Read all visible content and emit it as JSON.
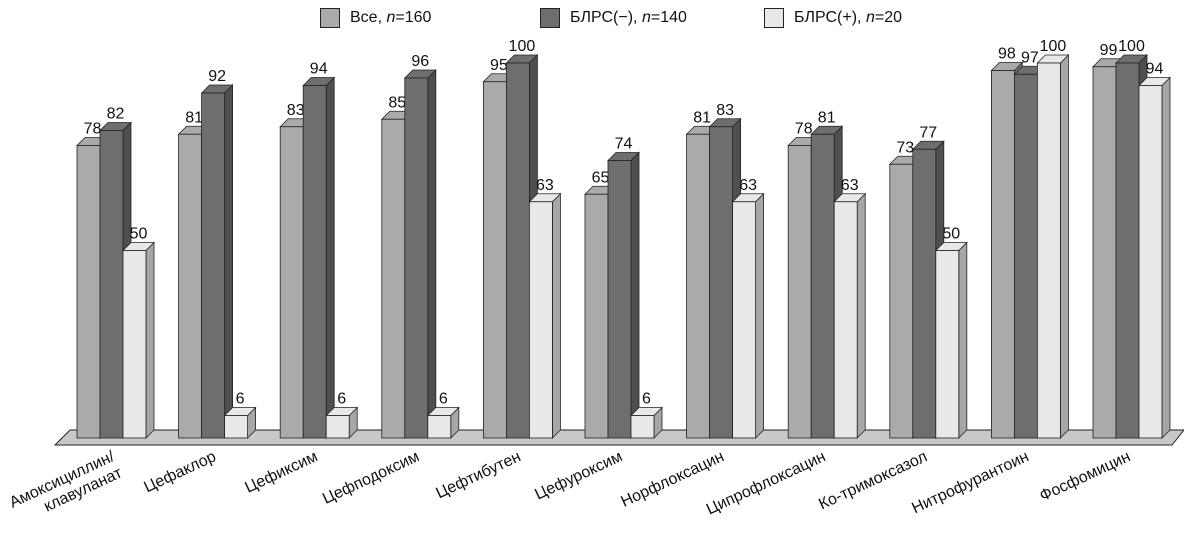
{
  "chart_data": {
    "type": "bar",
    "categories": [
      [
        "Амоксициллин/",
        "клавуланат"
      ],
      [
        "Цефаклор"
      ],
      [
        "Цефиксим"
      ],
      [
        "Цефподоксим"
      ],
      [
        "Цефтибутен"
      ],
      [
        "Цефуроксим"
      ],
      [
        "Норфлоксацин"
      ],
      [
        "Ципрофлоксацин"
      ],
      [
        "Ко-тримоксазол"
      ],
      [
        "Нитрофурантоин"
      ],
      [
        "Фосфомицин"
      ]
    ],
    "series": [
      {
        "name": "Все, n=160",
        "name_prefix": "Все, ",
        "name_var": "n",
        "name_suffix": "=160",
        "color": "#aaaaaa",
        "values": [
          78,
          81,
          83,
          85,
          95,
          65,
          81,
          78,
          73,
          98,
          99
        ]
      },
      {
        "name": "БЛРС(−), n=140",
        "name_prefix": "БЛРС(−), ",
        "name_var": "n",
        "name_suffix": "=140",
        "color": "#6e6e6e",
        "values": [
          82,
          92,
          94,
          96,
          100,
          74,
          83,
          81,
          77,
          97,
          100
        ]
      },
      {
        "name": "БЛРС(+), n=20",
        "name_prefix": "БЛРС(+), ",
        "name_var": "n",
        "name_suffix": "=20",
        "color": "#e8e8e8",
        "values": [
          50,
          6,
          6,
          6,
          63,
          6,
          63,
          63,
          50,
          100,
          94
        ]
      }
    ],
    "ylim": [
      0,
      100
    ],
    "grid": false,
    "legend_position": "top-center",
    "style": "3d-clustered-bar"
  }
}
